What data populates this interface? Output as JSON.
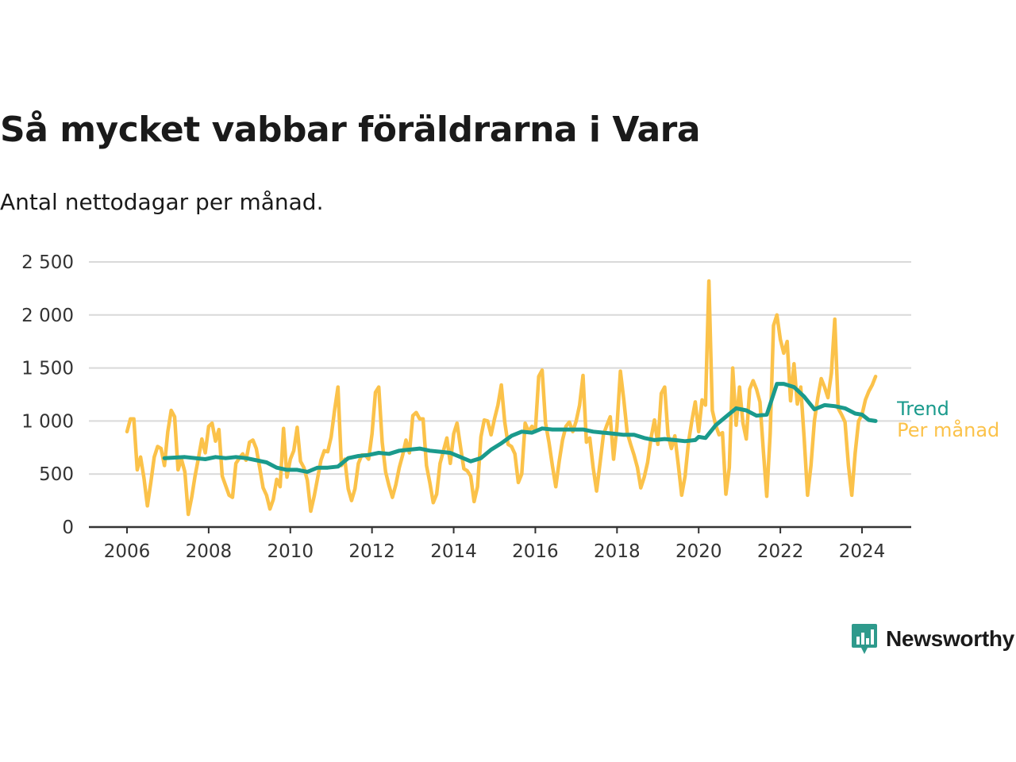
{
  "header": {
    "title": "Så mycket vabbar föräldrarna i Vara",
    "subtitle": "Antal nettodagar per månad."
  },
  "brand": {
    "name": "Newsworthy",
    "color": "#2e9a8c"
  },
  "chart_data": {
    "type": "line",
    "ylim": [
      0,
      2500
    ],
    "yticks": [
      0,
      500,
      1000,
      1500,
      2000,
      2500
    ],
    "ytick_labels": [
      "0",
      "500",
      "1 000",
      "1 500",
      "2 000",
      "2 500"
    ],
    "xticks": [
      "2006",
      "2008",
      "2010",
      "2012",
      "2014",
      "2016",
      "2018",
      "2020",
      "2022",
      "2024"
    ],
    "grid": true,
    "legend": "inline-right",
    "series": [
      {
        "name": "Per månad",
        "color": "#fbc24a",
        "x": [
          "2006-01",
          "2006-02",
          "2006-03",
          "2006-04",
          "2006-05",
          "2006-06",
          "2006-07",
          "2006-08",
          "2006-09",
          "2006-10",
          "2006-11",
          "2006-12",
          "2007-01",
          "2007-02",
          "2007-03",
          "2007-04",
          "2007-05",
          "2007-06",
          "2007-07",
          "2007-08",
          "2007-09",
          "2007-10",
          "2007-11",
          "2007-12",
          "2008-01",
          "2008-02",
          "2008-03",
          "2008-04",
          "2008-05",
          "2008-06",
          "2008-07",
          "2008-08",
          "2008-09",
          "2008-10",
          "2008-11",
          "2008-12",
          "2009-01",
          "2009-02",
          "2009-03",
          "2009-04",
          "2009-05",
          "2009-06",
          "2009-07",
          "2009-08",
          "2009-09",
          "2009-10",
          "2009-11",
          "2009-12",
          "2010-01",
          "2010-02",
          "2010-03",
          "2010-04",
          "2010-05",
          "2010-06",
          "2010-07",
          "2010-08",
          "2010-09",
          "2010-10",
          "2010-11",
          "2010-12",
          "2011-01",
          "2011-02",
          "2011-03",
          "2011-04",
          "2011-05",
          "2011-06",
          "2011-07",
          "2011-08",
          "2011-09",
          "2011-10",
          "2011-11",
          "2011-12",
          "2012-01",
          "2012-02",
          "2012-03",
          "2012-04",
          "2012-05",
          "2012-06",
          "2012-07",
          "2012-08",
          "2012-09",
          "2012-10",
          "2012-11",
          "2012-12",
          "2013-01",
          "2013-02",
          "2013-03",
          "2013-04",
          "2013-05",
          "2013-06",
          "2013-07",
          "2013-08",
          "2013-09",
          "2013-10",
          "2013-11",
          "2013-12",
          "2014-01",
          "2014-02",
          "2014-03",
          "2014-04",
          "2014-05",
          "2014-06",
          "2014-07",
          "2014-08",
          "2014-09",
          "2014-10",
          "2014-11",
          "2014-12",
          "2015-01",
          "2015-02",
          "2015-03",
          "2015-04",
          "2015-05",
          "2015-06",
          "2015-07",
          "2015-08",
          "2015-09",
          "2015-10",
          "2015-11",
          "2015-12",
          "2016-01",
          "2016-02",
          "2016-03",
          "2016-04",
          "2016-05",
          "2016-06",
          "2016-07",
          "2016-08",
          "2016-09",
          "2016-10",
          "2016-11",
          "2016-12",
          "2017-01",
          "2017-02",
          "2017-03",
          "2017-04",
          "2017-05",
          "2017-06",
          "2017-07",
          "2017-08",
          "2017-09",
          "2017-10",
          "2017-11",
          "2017-12",
          "2018-01",
          "2018-02",
          "2018-03",
          "2018-04",
          "2018-05",
          "2018-06",
          "2018-07",
          "2018-08",
          "2018-09",
          "2018-10",
          "2018-11",
          "2018-12",
          "2019-01",
          "2019-02",
          "2019-03",
          "2019-04",
          "2019-05",
          "2019-06",
          "2019-07",
          "2019-08",
          "2019-09",
          "2019-10",
          "2019-11",
          "2019-12",
          "2020-01",
          "2020-02",
          "2020-03",
          "2020-04",
          "2020-05",
          "2020-06",
          "2020-07",
          "2020-08",
          "2020-09",
          "2020-10",
          "2020-11",
          "2020-12",
          "2021-01",
          "2021-02",
          "2021-03",
          "2021-04",
          "2021-05",
          "2021-06",
          "2021-07",
          "2021-08",
          "2021-09",
          "2021-10",
          "2021-11",
          "2021-12",
          "2022-01",
          "2022-02",
          "2022-03",
          "2022-04",
          "2022-05",
          "2022-06",
          "2022-07",
          "2022-08",
          "2022-09",
          "2022-10",
          "2022-11",
          "2022-12",
          "2023-01",
          "2023-02",
          "2023-03",
          "2023-04",
          "2023-05",
          "2023-06",
          "2023-07",
          "2023-08",
          "2023-09",
          "2023-10",
          "2023-11",
          "2023-12",
          "2024-01",
          "2024-02",
          "2024-03",
          "2024-04",
          "2024-05"
        ],
        "values": [
          900,
          1020,
          1020,
          540,
          660,
          460,
          200,
          420,
          660,
          760,
          740,
          580,
          900,
          1100,
          1040,
          540,
          640,
          520,
          120,
          280,
          480,
          650,
          830,
          700,
          950,
          980,
          810,
          920,
          480,
          390,
          300,
          280,
          600,
          650,
          690,
          630,
          800,
          820,
          740,
          560,
          370,
          300,
          170,
          260,
          450,
          380,
          930,
          470,
          640,
          720,
          940,
          620,
          560,
          440,
          150,
          290,
          460,
          630,
          720,
          710,
          850,
          1100,
          1320,
          580,
          640,
          360,
          250,
          360,
          600,
          680,
          680,
          640,
          880,
          1270,
          1320,
          800,
          520,
          390,
          280,
          400,
          560,
          680,
          820,
          700,
          1050,
          1080,
          1020,
          1020,
          580,
          420,
          230,
          310,
          600,
          720,
          840,
          600,
          880,
          980,
          760,
          550,
          530,
          480,
          240,
          380,
          850,
          1010,
          1000,
          870,
          1020,
          1150,
          1340,
          990,
          780,
          760,
          690,
          420,
          500,
          980,
          900,
          950,
          900,
          1420,
          1480,
          980,
          800,
          580,
          380,
          620,
          820,
          950,
          990,
          900,
          1000,
          1150,
          1430,
          800,
          840,
          560,
          340,
          600,
          870,
          960,
          1040,
          640,
          950,
          1470,
          1200,
          890,
          780,
          680,
          560,
          370,
          470,
          610,
          840,
          1010,
          780,
          1260,
          1320,
          870,
          740,
          860,
          590,
          300,
          480,
          800,
          1000,
          1180,
          900,
          1200,
          1150,
          2320,
          1100,
          960,
          870,
          890,
          310,
          560,
          1500,
          960,
          1320,
          980,
          830,
          1300,
          1380,
          1300,
          1180,
          720,
          290,
          880,
          1900,
          2000,
          1770,
          1640,
          1750,
          1190,
          1540,
          1160,
          1320,
          840,
          300,
          580,
          1000,
          1220,
          1400,
          1320,
          1220,
          1450,
          1960,
          1120,
          1060,
          990,
          580,
          300,
          700,
          1000,
          1060,
          1200,
          1280,
          1340,
          1420
        ]
      },
      {
        "name": "Trend",
        "color": "#1a9a8c",
        "x": [
          "2006-12",
          "2007-06",
          "2007-12",
          "2008-03",
          "2008-06",
          "2008-09",
          "2008-12",
          "2009-06",
          "2009-09",
          "2009-12",
          "2010-03",
          "2010-06",
          "2010-09",
          "2010-12",
          "2011-03",
          "2011-06",
          "2011-09",
          "2011-12",
          "2012-03",
          "2012-06",
          "2012-09",
          "2012-12",
          "2013-03",
          "2013-06",
          "2013-09",
          "2013-12",
          "2014-03",
          "2014-06",
          "2014-09",
          "2014-12",
          "2015-03",
          "2015-06",
          "2015-09",
          "2015-12",
          "2016-03",
          "2016-06",
          "2016-09",
          "2016-12",
          "2017-03",
          "2017-06",
          "2017-09",
          "2017-12",
          "2018-03",
          "2018-06",
          "2018-09",
          "2018-12",
          "2019-03",
          "2019-06",
          "2019-09",
          "2019-12",
          "2020-01",
          "2020-03",
          "2020-06",
          "2020-09",
          "2020-12",
          "2021-03",
          "2021-06",
          "2021-09",
          "2021-12",
          "2022-02",
          "2022-05",
          "2022-08",
          "2022-11",
          "2023-02",
          "2023-05",
          "2023-08",
          "2023-11",
          "2024-01",
          "2024-03",
          "2024-05"
        ],
        "values": [
          650,
          660,
          640,
          660,
          650,
          660,
          650,
          610,
          560,
          540,
          540,
          520,
          560,
          560,
          570,
          650,
          670,
          680,
          700,
          690,
          720,
          730,
          740,
          720,
          710,
          700,
          660,
          620,
          650,
          730,
          790,
          860,
          900,
          890,
          930,
          920,
          920,
          920,
          920,
          900,
          890,
          880,
          870,
          870,
          840,
          820,
          830,
          820,
          810,
          820,
          850,
          840,
          960,
          1040,
          1120,
          1100,
          1050,
          1060,
          1350,
          1350,
          1320,
          1230,
          1110,
          1150,
          1140,
          1120,
          1070,
          1060,
          1010,
          1000
        ]
      }
    ]
  }
}
